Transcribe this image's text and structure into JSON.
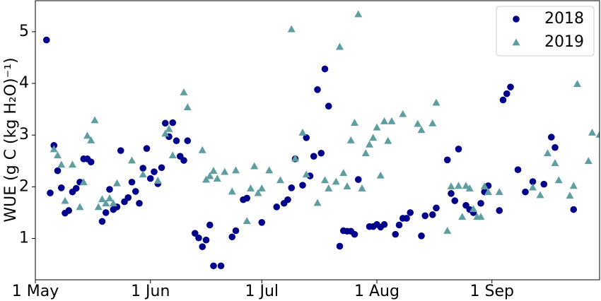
{
  "chart_data": {
    "type": "scatter",
    "y_label": "WUE (g C (kg H₂O)⁻¹)",
    "xlim": [
      "1 May",
      "30 Sep"
    ],
    "xticks": [
      "1 May",
      "1 Jun",
      "1 Jul",
      "1 Aug",
      "1 Sep"
    ],
    "ylim": [
      0.2,
      5.6
    ],
    "yticks": [
      1,
      2,
      3,
      4,
      5
    ],
    "grid": false,
    "legend": "upper right",
    "series": [
      {
        "name": "2018",
        "color": "#00008b",
        "marker": "circle",
        "x": [
          "4 May",
          "5 May",
          "6 May",
          "7 May",
          "8 May",
          "9 May",
          "10 May",
          "11 May",
          "12 May",
          "13 May",
          "14 May",
          "15 May",
          "16 May",
          "19 May",
          "20 May",
          "21 May",
          "22 May",
          "23 May",
          "24 May",
          "25 May",
          "26 May",
          "27 May",
          "28 May",
          "29 May",
          "30 May",
          "31 May",
          "1 Jun",
          "2 Jun",
          "3 Jun",
          "4 Jun",
          "5 Jun",
          "6 Jun",
          "7 Jun",
          "8 Jun",
          "9 Jun",
          "10 Jun",
          "11 Jun",
          "13 Jun",
          "14 Jun",
          "15 Jun",
          "16 Jun",
          "17 Jun",
          "18 Jun",
          "20 Jun",
          "23 Jun",
          "24 Jun",
          "26 Jun",
          "27 Jun",
          "1 Jul",
          "5 Jul",
          "7 Jul",
          "8 Jul",
          "9 Jul",
          "10 Jul",
          "12 Jul",
          "13 Jul",
          "14 Jul",
          "15 Jul",
          "16 Jul",
          "17 Jul",
          "18 Jul",
          "19 Jul",
          "22 Jul",
          "23 Jul",
          "24 Jul",
          "25 Jul",
          "26 Jul",
          "27 Jul",
          "30 Jul",
          "31 Jul",
          "1 Aug",
          "2 Aug",
          "3 Aug",
          "6 Aug",
          "7 Aug",
          "8 Aug",
          "9 Aug",
          "10 Aug",
          "13 Aug",
          "14 Aug",
          "16 Aug",
          "17 Aug",
          "20 Aug",
          "21 Aug",
          "22 Aug",
          "23 Aug",
          "25 Aug",
          "26 Aug",
          "27 Aug",
          "29 Aug",
          "30 Aug",
          "31 Aug",
          "3 Sep",
          "4 Sep",
          "5 Sep",
          "6 Sep",
          "8 Sep",
          "10 Sep",
          "12 Sep",
          "15 Sep",
          "17 Sep",
          "18 Sep",
          "23 Sep"
        ],
        "values": [
          4.84,
          1.88,
          2.8,
          2.31,
          1.98,
          1.49,
          1.54,
          1.9,
          1.97,
          2.09,
          2.54,
          2.54,
          2.48,
          1.33,
          1.5,
          1.95,
          1.56,
          1.61,
          2.7,
          1.71,
          1.79,
          2.09,
          1.91,
          1.68,
          2.36,
          2.74,
          2.16,
          2.29,
          2.06,
          2.37,
          3.23,
          2.97,
          3.24,
          2.89,
          2.59,
          2.51,
          2.89,
          1.1,
          1.01,
          0.84,
          0.97,
          1.26,
          0.47,
          0.47,
          1.03,
          1.15,
          1.75,
          1.78,
          1.31,
          1.61,
          1.68,
          1.75,
          1.98,
          2.54,
          2.03,
          2.95,
          2.21,
          2.59,
          3.88,
          2.65,
          4.28,
          3.56,
          0.85,
          1.15,
          1.14,
          1.14,
          1.08,
          2.14,
          1.23,
          1.23,
          1.27,
          1.22,
          1.27,
          1.08,
          1.26,
          1.39,
          1.39,
          1.5,
          1.05,
          1.44,
          1.46,
          1.59,
          2.52,
          1.87,
          1.73,
          2.73,
          1.64,
          1.56,
          1.5,
          1.68,
          1.9,
          2.02,
          1.54,
          3.68,
          3.8,
          3.93,
          2.33,
          1.9,
          2.1,
          2.05,
          2.96,
          2.76,
          1.56
        ]
      },
      {
        "name": "2019",
        "color": "#5f9ea0",
        "marker": "triangle",
        "x": [
          "6 May",
          "7 May",
          "8 May",
          "9 May",
          "11 May",
          "13 May",
          "14 May",
          "15 May",
          "16 May",
          "17 May",
          "18 May",
          "19 May",
          "20 May",
          "21 May",
          "22 May",
          "23 May",
          "27 May",
          "30 May",
          "3 Jun",
          "5 Jun",
          "6 Jun",
          "7 Jun",
          "10 Jun",
          "11 Jun",
          "15 Jun",
          "16 Jun",
          "17 Jun",
          "18 Jun",
          "19 Jun",
          "21 Jun",
          "23 Jun",
          "24 Jun",
          "27 Jun",
          "28 Jun",
          "29 Jun",
          "30 Jun",
          "1 Jul",
          "3 Jul",
          "6 Jul",
          "9 Jul",
          "10 Jul",
          "12 Jul",
          "13 Jul",
          "16 Jul",
          "18 Jul",
          "19 Jul",
          "21 Jul",
          "22 Jul",
          "23 Jul",
          "24 Jul",
          "25 Jul",
          "26 Jul",
          "27 Jul",
          "28 Jul",
          "29 Jul",
          "30 Jul",
          "31 Jul",
          "1 Aug",
          "2 Aug",
          "3 Aug",
          "4 Aug",
          "5 Aug",
          "8 Aug",
          "12 Aug",
          "13 Aug",
          "16 Aug",
          "17 Aug",
          "20 Aug",
          "21 Aug",
          "23 Aug",
          "24 Aug",
          "25 Aug",
          "26 Aug",
          "27 Aug",
          "28 Aug",
          "29 Aug",
          "30 Aug",
          "31 Aug",
          "3 Sep",
          "12 Sep",
          "14 Sep",
          "16 Sep",
          "18 Sep",
          "19 Sep",
          "22 Sep",
          "23 Sep",
          "24 Sep",
          "27 Sep",
          "28 Sep",
          "30 Sep"
        ],
        "values": [
          2.73,
          2.61,
          2.43,
          1.73,
          2.43,
          1.61,
          2.09,
          2.99,
          2.9,
          3.29,
          1.61,
          1.76,
          1.68,
          1.78,
          1.68,
          2.07,
          2.51,
          2.24,
          2.12,
          3.03,
          3.12,
          2.61,
          3.83,
          3.54,
          2.71,
          2.14,
          2.21,
          2.31,
          2.16,
          2.29,
          1.91,
          2.32,
          1.34,
          1.97,
          2.4,
          1.88,
          1.97,
          2.32,
          2.13,
          5.05,
          2.55,
          3.05,
          2.24,
          1.69,
          2.13,
          1.97,
          2.1,
          4.71,
          2.27,
          2.01,
          2.9,
          3.24,
          5.34,
          1.97,
          2.65,
          2.82,
          2.95,
          3.15,
          2.22,
          3.27,
          2.89,
          3.27,
          3.41,
          3.22,
          3.1,
          3.23,
          3.63,
          1.15,
          2.01,
          2.02,
          1.42,
          2.02,
          1.97,
          1.57,
          1.42,
          1.42,
          2.01,
          1.9,
          1.9,
          1.99,
          1.84,
          2.65,
          2.46,
          2.13,
          1.83,
          2.02,
          3.99,
          2.5,
          3.05,
          3.01
        ]
      }
    ]
  }
}
